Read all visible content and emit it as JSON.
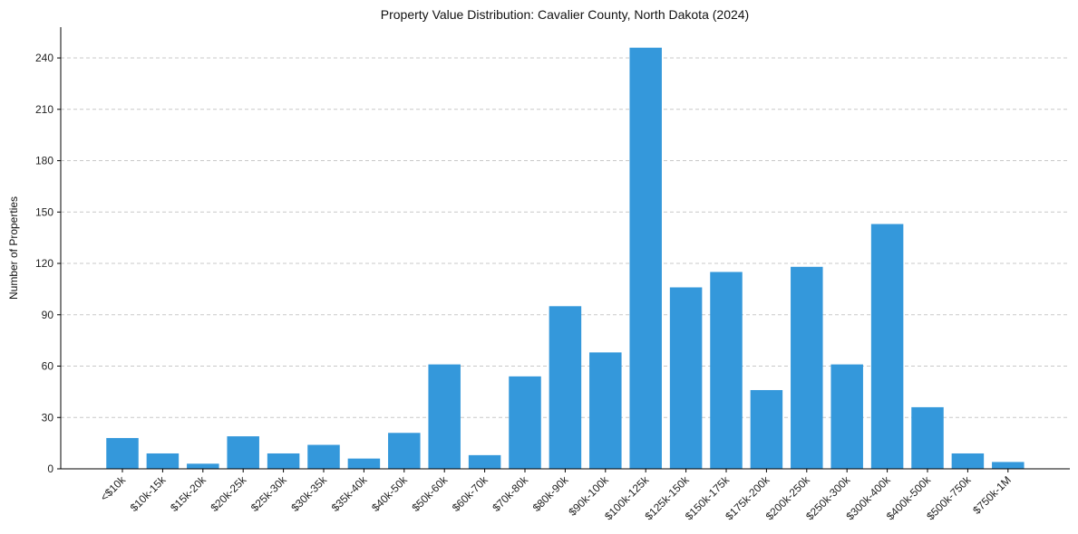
{
  "chart_data": {
    "type": "bar",
    "title": "Property Value Distribution: Cavalier County, North Dakota (2024)",
    "xlabel": "",
    "ylabel": "Number of Properties",
    "categories": [
      "<$10k",
      "$10k-15k",
      "$15k-20k",
      "$20k-25k",
      "$25k-30k",
      "$30k-35k",
      "$35k-40k",
      "$40k-50k",
      "$50k-60k",
      "$60k-70k",
      "$70k-80k",
      "$80k-90k",
      "$90k-100k",
      "$100k-125k",
      "$125k-150k",
      "$150k-175k",
      "$175k-200k",
      "$200k-250k",
      "$250k-300k",
      "$300k-400k",
      "$400k-500k",
      "$500k-750k",
      "$750k-1M"
    ],
    "values": [
      18,
      9,
      3,
      19,
      9,
      14,
      6,
      21,
      61,
      8,
      54,
      95,
      68,
      246,
      106,
      115,
      46,
      118,
      61,
      143,
      36,
      9,
      4
    ],
    "ylim": [
      0,
      258
    ],
    "yticks": [
      0,
      30,
      60,
      90,
      120,
      150,
      180,
      210,
      240
    ],
    "grid": "y-dashed",
    "bar_color": "#3498db",
    "grid_color": "#c8c8c8",
    "axis_color": "#000000"
  }
}
